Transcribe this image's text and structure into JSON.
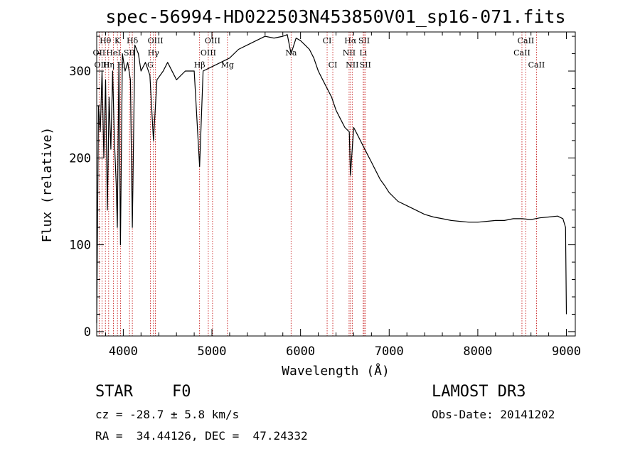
{
  "chart_data": {
    "type": "line",
    "title": "spec-56994-HD022503N453850V01_sp16-071.fits",
    "xlabel": "Wavelength (Å)",
    "ylabel": "Flux (relative)",
    "xlim": [
      3700,
      9100
    ],
    "ylim": [
      -5,
      345
    ],
    "x_ticks": [
      4000,
      5000,
      6000,
      7000,
      8000,
      9000
    ],
    "x_tick_labels": [
      "4000",
      "5000",
      "6000",
      "7000",
      "8000",
      "9000"
    ],
    "y_ticks": [
      0,
      100,
      200,
      300
    ],
    "y_tick_labels": [
      "0",
      "100",
      "200",
      "300"
    ],
    "grid": false,
    "series": [
      {
        "name": "flux",
        "x": [
          3700,
          3720,
          3740,
          3760,
          3780,
          3800,
          3820,
          3840,
          3860,
          3880,
          3900,
          3920,
          3933,
          3950,
          3968,
          3990,
          4020,
          4050,
          4080,
          4102,
          4130,
          4170,
          4200,
          4250,
          4300,
          4340,
          4380,
          4450,
          4500,
          4600,
          4700,
          4800,
          4861,
          4900,
          5000,
          5100,
          5200,
          5300,
          5400,
          5500,
          5600,
          5700,
          5800,
          5850,
          5893,
          5950,
          6000,
          6050,
          6100,
          6150,
          6200,
          6250,
          6300,
          6350,
          6400,
          6450,
          6500,
          6550,
          6563,
          6600,
          6650,
          6700,
          6750,
          6800,
          6850,
          6900,
          6950,
          7000,
          7100,
          7200,
          7300,
          7400,
          7500,
          7600,
          7700,
          7800,
          7900,
          8000,
          8100,
          8200,
          8300,
          8400,
          8500,
          8600,
          8700,
          8800,
          8900,
          8960,
          8990,
          9000
        ],
        "y": [
          10,
          260,
          230,
          300,
          200,
          290,
          140,
          270,
          210,
          300,
          220,
          170,
          120,
          310,
          100,
          320,
          300,
          310,
          290,
          120,
          330,
          320,
          300,
          310,
          295,
          220,
          290,
          300,
          310,
          290,
          300,
          300,
          190,
          300,
          305,
          310,
          315,
          325,
          330,
          335,
          340,
          338,
          340,
          342,
          320,
          338,
          335,
          330,
          325,
          315,
          300,
          290,
          280,
          270,
          255,
          245,
          235,
          230,
          180,
          235,
          225,
          215,
          205,
          195,
          185,
          175,
          168,
          160,
          150,
          145,
          140,
          135,
          132,
          130,
          128,
          127,
          126,
          126,
          127,
          128,
          128,
          130,
          130,
          129,
          131,
          132,
          133,
          130,
          120,
          20
        ]
      }
    ],
    "line_markers": [
      {
        "label": "Hθ",
        "x": 3798,
        "row": 1
      },
      {
        "label": "K",
        "x": 3934,
        "row": 1
      },
      {
        "label": "Hδ",
        "x": 4102,
        "row": 1
      },
      {
        "label": "OIII",
        "x": 4363,
        "row": 1
      },
      {
        "label": "OIII",
        "x": 5007,
        "row": 1
      },
      {
        "label": "CI",
        "x": 6300,
        "row": 1
      },
      {
        "label": "Hα",
        "x": 6563,
        "row": 1
      },
      {
        "label": "SII",
        "x": 6717,
        "row": 1
      },
      {
        "label": "CaII",
        "x": 8542,
        "row": 1
      },
      {
        "label": "OII",
        "x": 3727,
        "row": 2
      },
      {
        "label": "HeI",
        "x": 3889,
        "row": 2
      },
      {
        "label": "SII",
        "x": 4070,
        "row": 2
      },
      {
        "label": "Hγ",
        "x": 4340,
        "row": 2
      },
      {
        "label": "OIII",
        "x": 4959,
        "row": 2
      },
      {
        "label": "Na",
        "x": 5893,
        "row": 2
      },
      {
        "label": "NII",
        "x": 6548,
        "row": 2
      },
      {
        "label": "Li",
        "x": 6707,
        "row": 2
      },
      {
        "label": "CaII",
        "x": 8498,
        "row": 2
      },
      {
        "label": "OIII",
        "x": 3760,
        "row": 3
      },
      {
        "label": "Hη",
        "x": 3835,
        "row": 3
      },
      {
        "label": "H",
        "x": 3969,
        "row": 3
      },
      {
        "label": "G",
        "x": 4305,
        "row": 3
      },
      {
        "label": "Hβ",
        "x": 4861,
        "row": 3
      },
      {
        "label": "Mg",
        "x": 5175,
        "row": 3
      },
      {
        "label": "CI",
        "x": 6364,
        "row": 3
      },
      {
        "label": "NII",
        "x": 6583,
        "row": 3
      },
      {
        "label": "SII",
        "x": 6731,
        "row": 3
      },
      {
        "label": "CaII",
        "x": 8662,
        "row": 3
      }
    ]
  },
  "info": {
    "object_type": "STAR",
    "subclass": "F0",
    "survey": "LAMOST DR3",
    "cz": "cz = -28.7 ± 5.8 km/s",
    "obs_date": "Obs-Date: 20141202",
    "coords": "RA =  34.44126, DEC =  47.24332"
  },
  "colors": {
    "line": "#000000",
    "marker_line": "#c00000"
  }
}
